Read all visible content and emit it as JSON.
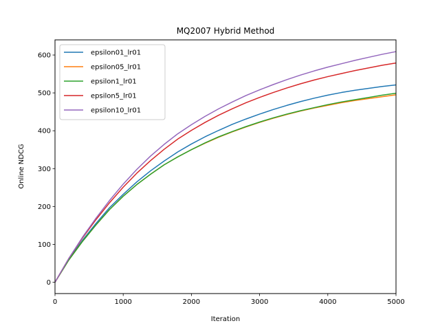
{
  "chart_data": {
    "type": "line",
    "title": "MQ2007 Hybrid Method",
    "xlabel": "Iteration",
    "ylabel": "Online NDCG",
    "xlim": [
      0,
      5000
    ],
    "ylim": [
      -30,
      640
    ],
    "xticks": [
      0,
      1000,
      2000,
      3000,
      4000,
      5000
    ],
    "yticks": [
      0,
      100,
      200,
      300,
      400,
      500,
      600
    ],
    "grid": false,
    "legend_position": "top-left",
    "x": [
      0,
      200,
      400,
      600,
      800,
      1000,
      1200,
      1400,
      1600,
      1800,
      2000,
      2200,
      2400,
      2600,
      2800,
      3000,
      3200,
      3400,
      3600,
      3800,
      4000,
      4200,
      4400,
      4600,
      4800,
      5000
    ],
    "series": [
      {
        "name": "epsilon01_lr01",
        "color": "#1f77b4",
        "values": [
          0,
          60,
          110,
          155,
          197,
          232,
          265,
          294,
          320,
          344,
          365,
          384,
          401,
          417,
          431,
          444,
          456,
          467,
          477,
          486,
          494,
          501,
          507,
          512,
          517,
          521
        ]
      },
      {
        "name": "epsilon05_lr01",
        "color": "#ff7f0e",
        "values": [
          0,
          58,
          107,
          151,
          192,
          227,
          258,
          285,
          310,
          331,
          350,
          367,
          383,
          397,
          410,
          422,
          433,
          443,
          452,
          460,
          467,
          474,
          480,
          485,
          490,
          495
        ]
      },
      {
        "name": "epsilon1_lr01",
        "color": "#2ca02c",
        "values": [
          0,
          58,
          107,
          151,
          192,
          227,
          258,
          285,
          310,
          331,
          350,
          368,
          384,
          398,
          411,
          423,
          434,
          444,
          453,
          461,
          469,
          476,
          482,
          488,
          494,
          499
        ]
      },
      {
        "name": "epsilon5_lr01",
        "color": "#d62728",
        "values": [
          0,
          62,
          116,
          165,
          210,
          251,
          288,
          321,
          351,
          378,
          401,
          422,
          441,
          458,
          474,
          488,
          501,
          513,
          524,
          534,
          543,
          551,
          559,
          566,
          573,
          579
        ]
      },
      {
        "name": "epsilon10_lr01",
        "color": "#9467bd",
        "values": [
          0,
          62,
          118,
          169,
          216,
          259,
          298,
          333,
          364,
          392,
          416,
          438,
          458,
          476,
          493,
          508,
          522,
          535,
          547,
          558,
          568,
          577,
          586,
          594,
          602,
          609
        ]
      }
    ]
  }
}
